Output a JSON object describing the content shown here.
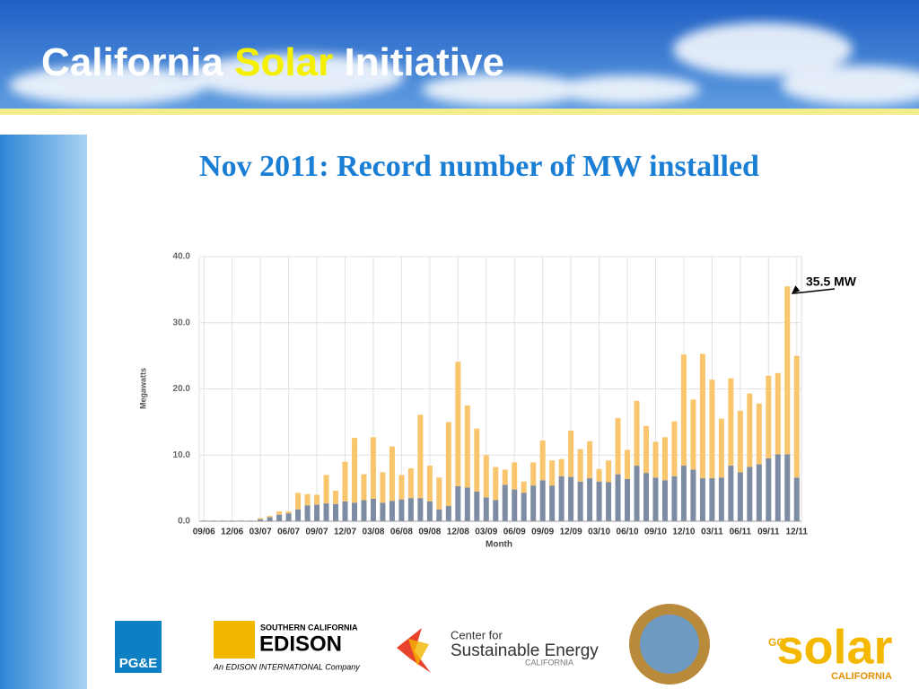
{
  "header": {
    "title_parts": [
      "California",
      "Solar",
      "Initiative"
    ]
  },
  "chart_data": {
    "type": "bar",
    "stacked": true,
    "title": "Nov 2011: Record number of MW installed",
    "y_label": "Megawatts",
    "x_label": "Month",
    "categories": [
      "09/06",
      null,
      null,
      "12/06",
      null,
      null,
      "03/07",
      null,
      null,
      "06/07",
      null,
      null,
      "09/07",
      null,
      null,
      "12/07",
      null,
      null,
      "03/08",
      null,
      null,
      "06/08",
      null,
      null,
      "09/08",
      null,
      null,
      "12/08",
      null,
      null,
      "03/09",
      null,
      null,
      "06/09",
      null,
      null,
      "09/09",
      null,
      null,
      "12/09",
      null,
      null,
      "03/10",
      null,
      null,
      "06/10",
      null,
      null,
      "09/10",
      null,
      null,
      "12/10",
      null,
      null,
      "03/11",
      null,
      null,
      "06/11",
      null,
      null,
      "09/11",
      null,
      null,
      "12/11"
    ],
    "series": [
      {
        "color": "#7d8ca3",
        "values": [
          0.1,
          0.1,
          0.1,
          0.1,
          0.1,
          0.1,
          0.3,
          0.6,
          1.0,
          1.2,
          1.8,
          2.4,
          2.5,
          2.7,
          2.6,
          3.0,
          2.8,
          3.2,
          3.4,
          2.8,
          3.1,
          3.3,
          3.5,
          3.5,
          3.0,
          1.8,
          2.3,
          5.3,
          5.1,
          4.5,
          3.6,
          3.2,
          5.5,
          4.8,
          4.3,
          5.4,
          6.2,
          5.4,
          6.8,
          6.7,
          6.0,
          6.5,
          6.0,
          5.9,
          7.1,
          6.4,
          8.4,
          7.3,
          6.6,
          6.2,
          6.8,
          8.4,
          7.8,
          6.5,
          6.5,
          6.6,
          8.4,
          7.4,
          8.2,
          8.6,
          9.5,
          10.1,
          10.1,
          6.6
        ]
      },
      {
        "color": "#f9c66e",
        "values": [
          0,
          0,
          0,
          0,
          0,
          0,
          0.2,
          0.2,
          0.5,
          0.3,
          2.5,
          1.7,
          1.5,
          4.3,
          2.0,
          6.0,
          9.8,
          3.9,
          9.3,
          4.6,
          8.2,
          3.7,
          4.5,
          12.6,
          5.4,
          4.8,
          12.7,
          18.8,
          12.4,
          9.5,
          6.4,
          5.0,
          2.3,
          4.1,
          1.7,
          3.5,
          6.0,
          3.8,
          2.6,
          7.0,
          4.9,
          5.6,
          1.9,
          3.3,
          8.5,
          4.4,
          9.8,
          7.1,
          5.4,
          6.5,
          8.3,
          16.8,
          10.6,
          18.8,
          14.9,
          8.9,
          13.2,
          9.3,
          11.1,
          9.2,
          12.5,
          12.3,
          25.4,
          18.4
        ]
      }
    ],
    "ylim": [
      0,
      40
    ],
    "yticks": [
      {
        "value": 0,
        "label": "0.0"
      },
      {
        "value": 10,
        "label": "10.0"
      },
      {
        "value": 20,
        "label": "20.0"
      },
      {
        "value": 30,
        "label": "30.0"
      },
      {
        "value": 40,
        "label": "40.0"
      }
    ],
    "grid": true,
    "annotation": {
      "text": "35.5 MW",
      "category_index": 62
    }
  },
  "logos": {
    "pge": "PG&E",
    "edison": [
      "SOUTHERN CALIFORNIA",
      "EDISON",
      "An EDISON INTERNATIONAL Company"
    ],
    "cse": [
      "Center for",
      "Sustainable Energy",
      "CALIFORNIA"
    ],
    "gosolar": [
      "GO",
      "solar",
      "CALIFORNIA"
    ]
  }
}
